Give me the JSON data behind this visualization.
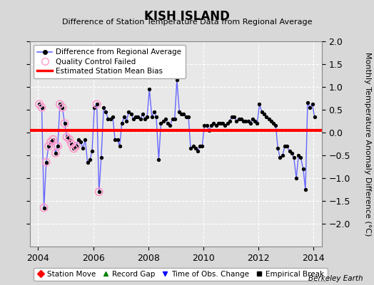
{
  "title": "KISH ISLAND",
  "subtitle": "Difference of Station Temperature Data from Regional Average",
  "ylabel": "Monthly Temperature Anomaly Difference (°C)",
  "bias": 0.04,
  "xlim": [
    2003.7,
    2014.3
  ],
  "ylim": [
    -2.5,
    2.0
  ],
  "yticks": [
    -2.0,
    -1.5,
    -1.0,
    -0.5,
    0.0,
    0.5,
    1.0,
    1.5,
    2.0
  ],
  "xticks": [
    2004,
    2006,
    2008,
    2010,
    2012,
    2014
  ],
  "background_color": "#e8e8e8",
  "outer_background": "#d8d8d8",
  "grid_color": "#ffffff",
  "line_color": "#6666ff",
  "bias_color": "#ff0000",
  "qc_color": "#ff99cc",
  "source": "Berkeley Earth",
  "times": [
    2004.04,
    2004.13,
    2004.21,
    2004.29,
    2004.38,
    2004.46,
    2004.54,
    2004.63,
    2004.71,
    2004.79,
    2004.88,
    2004.96,
    2005.04,
    2005.13,
    2005.21,
    2005.29,
    2005.38,
    2005.46,
    2005.54,
    2005.63,
    2005.71,
    2005.79,
    2005.88,
    2005.96,
    2006.04,
    2006.13,
    2006.21,
    2006.29,
    2006.38,
    2006.46,
    2006.54,
    2006.63,
    2006.71,
    2006.79,
    2006.88,
    2006.96,
    2007.04,
    2007.13,
    2007.21,
    2007.29,
    2007.38,
    2007.46,
    2007.54,
    2007.63,
    2007.71,
    2007.79,
    2007.88,
    2007.96,
    2008.04,
    2008.13,
    2008.21,
    2008.29,
    2008.38,
    2008.46,
    2008.54,
    2008.63,
    2008.71,
    2008.79,
    2008.88,
    2008.96,
    2009.04,
    2009.13,
    2009.21,
    2009.29,
    2009.38,
    2009.46,
    2009.54,
    2009.63,
    2009.71,
    2009.79,
    2009.88,
    2009.96,
    2010.04,
    2010.13,
    2010.21,
    2010.29,
    2010.38,
    2010.46,
    2010.54,
    2010.63,
    2010.71,
    2010.79,
    2010.88,
    2010.96,
    2011.04,
    2011.13,
    2011.21,
    2011.29,
    2011.38,
    2011.46,
    2011.54,
    2011.63,
    2011.71,
    2011.79,
    2011.88,
    2011.96,
    2012.04,
    2012.13,
    2012.21,
    2012.29,
    2012.38,
    2012.46,
    2012.54,
    2012.63,
    2012.71,
    2012.79,
    2012.88,
    2012.96,
    2013.04,
    2013.13,
    2013.21,
    2013.29,
    2013.38,
    2013.46,
    2013.54,
    2013.63,
    2013.71,
    2013.79,
    2013.88,
    2013.96,
    2014.04
  ],
  "values": [
    0.62,
    0.55,
    -1.65,
    -0.65,
    -0.3,
    -0.2,
    -0.15,
    -0.45,
    -0.3,
    0.62,
    0.55,
    0.2,
    -0.1,
    -0.15,
    -0.25,
    -0.35,
    -0.3,
    -0.15,
    -0.2,
    -0.35,
    -0.15,
    -0.65,
    -0.6,
    -0.4,
    0.55,
    0.62,
    -1.3,
    -0.55,
    0.55,
    0.45,
    0.3,
    0.3,
    0.35,
    -0.15,
    -0.15,
    -0.3,
    0.2,
    0.35,
    0.25,
    0.45,
    0.4,
    0.3,
    0.35,
    0.35,
    0.3,
    0.4,
    0.3,
    0.35,
    0.95,
    0.35,
    0.45,
    0.35,
    -0.6,
    0.2,
    0.25,
    0.3,
    0.2,
    0.15,
    0.3,
    0.3,
    1.15,
    0.45,
    0.4,
    0.4,
    0.35,
    0.35,
    -0.35,
    -0.3,
    -0.35,
    -0.4,
    -0.3,
    -0.3,
    0.15,
    0.15,
    0.05,
    0.15,
    0.2,
    0.15,
    0.2,
    0.2,
    0.2,
    0.15,
    0.2,
    0.25,
    0.35,
    0.35,
    0.25,
    0.3,
    0.3,
    0.25,
    0.25,
    0.25,
    0.2,
    0.3,
    0.25,
    0.2,
    0.62,
    0.45,
    0.4,
    0.35,
    0.3,
    0.25,
    0.2,
    0.15,
    -0.35,
    -0.55,
    -0.5,
    -0.3,
    -0.3,
    -0.4,
    -0.45,
    -0.55,
    -1.0,
    -0.5,
    -0.55,
    -0.8,
    -1.25,
    0.65,
    0.55,
    0.62,
    0.35
  ],
  "qc_failed_indices": [
    0,
    1,
    2,
    3,
    4,
    5,
    6,
    7,
    8,
    9,
    10,
    11,
    12,
    13,
    14,
    15,
    16,
    25,
    26
  ]
}
